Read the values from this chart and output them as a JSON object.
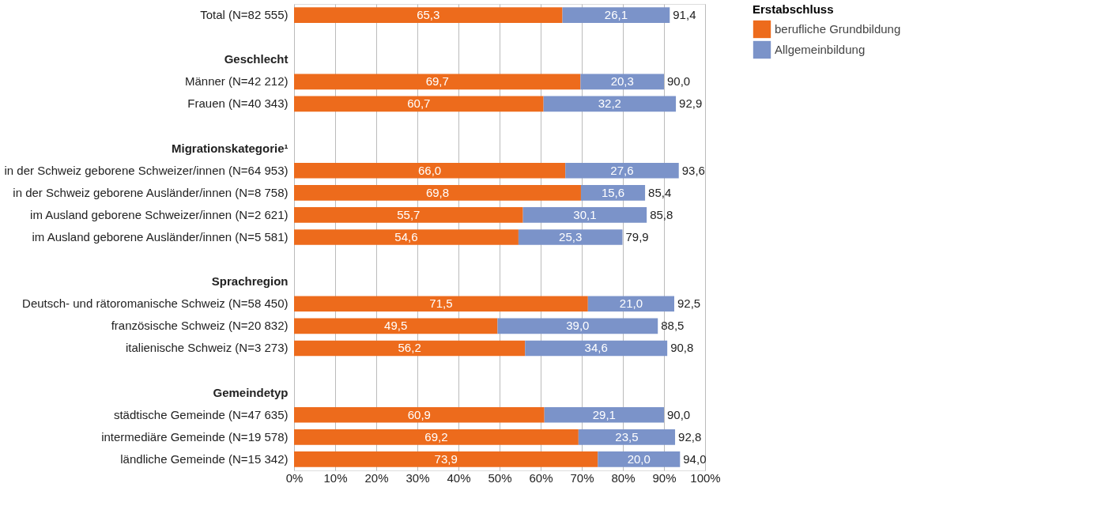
{
  "chart_data": {
    "type": "bar",
    "orientation": "horizontal",
    "stacked": true,
    "legend": "top right",
    "legend_title": "Erstabschluss",
    "grid": "x",
    "categories": [
      "Total (N=82 555)",
      null,
      "Geschlecht",
      "Männer (N=42 212)",
      "Frauen (N=40 343)",
      null,
      "Migrationskategorie¹",
      "in der Schweiz geborene Schweizer/innen (N=64 953)",
      "in der Schweiz geborene Ausländer/innen (N=8 758)",
      "im Ausland geborene Schweizer/innen (N=2 621)",
      "im Ausland geborene Ausländer/innen (N=5 581)",
      null,
      "Sprachregion",
      "Deutsch- und rätoromanische Schweiz (N=58 450)",
      "französische Schweiz (N=20 832)",
      "italienische Schweiz (N=3 273)",
      null,
      "Gemeindetyp",
      "städtische Gemeinde (N=47 635)",
      "intermediäre Gemeinde (N=19 578)",
      "ländliche Gemeinde (N=15 342)"
    ],
    "series": [
      {
        "name": "berufliche Grundbildung",
        "color": "#ed6b1c",
        "values": [
          65.3,
          null,
          null,
          69.7,
          60.7,
          null,
          null,
          66.0,
          69.8,
          55.7,
          54.6,
          null,
          null,
          71.5,
          49.5,
          56.2,
          null,
          null,
          60.9,
          69.2,
          73.9
        ],
        "value_labels": [
          "65,3",
          null,
          null,
          "69,7",
          "60,7",
          null,
          null,
          "66,0",
          "69,8",
          "55,7",
          "54,6",
          null,
          null,
          "71,5",
          "49,5",
          "56,2",
          null,
          null,
          "60,9",
          "69,2",
          "73,9"
        ]
      },
      {
        "name": "Allgemeinbildung",
        "color": "#7b93c9",
        "values": [
          26.1,
          null,
          null,
          20.3,
          32.2,
          null,
          null,
          27.6,
          15.6,
          30.1,
          25.3,
          null,
          null,
          21.0,
          39.0,
          34.6,
          null,
          null,
          29.1,
          23.5,
          20.0
        ],
        "value_labels": [
          "26,1",
          null,
          null,
          "20,3",
          "32,2",
          null,
          null,
          "27,6",
          "15,6",
          "30,1",
          "25,3",
          null,
          null,
          "21,0",
          "39,0",
          "34,6",
          null,
          null,
          "29,1",
          "23,5",
          "20,0"
        ]
      }
    ],
    "totals": [
      "91,4",
      null,
      null,
      "90,0",
      "92,9",
      null,
      null,
      "93,6",
      "85,4",
      "85,8",
      "79,9",
      null,
      null,
      "92,5",
      "88,5",
      "90,8",
      null,
      null,
      "90,0",
      "92,8",
      "94,0"
    ],
    "xlim": [
      0,
      100
    ],
    "xticks": [
      {
        "value": 0,
        "label": "0%"
      },
      {
        "value": 10,
        "label": "10%"
      },
      {
        "value": 20,
        "label": "20%"
      },
      {
        "value": 30,
        "label": "30%"
      },
      {
        "value": 40,
        "label": "40%"
      },
      {
        "value": 50,
        "label": "50%"
      },
      {
        "value": 60,
        "label": "60%"
      },
      {
        "value": 70,
        "label": "70%"
      },
      {
        "value": 80,
        "label": "80%"
      },
      {
        "value": 90,
        "label": "90%"
      },
      {
        "value": 100,
        "label": "100%"
      }
    ]
  }
}
